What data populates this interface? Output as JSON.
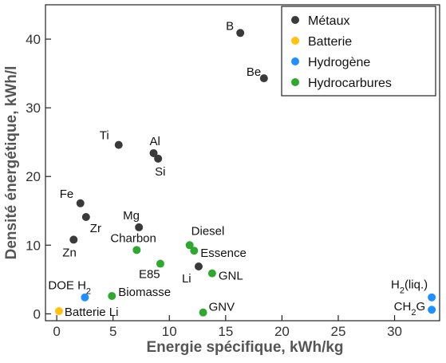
{
  "chart_data": {
    "type": "scatter",
    "xlabel": "Energie spécifique, kWh/kg",
    "ylabel": "Densité énergétique, kWh/l",
    "xlim": [
      -1,
      34
    ],
    "ylim": [
      -1,
      45
    ],
    "xticks": [
      0,
      5,
      10,
      15,
      20,
      25,
      30
    ],
    "yticks": [
      0,
      10,
      20,
      30,
      40
    ],
    "grid": false,
    "legend_position": "top-right",
    "series": [
      {
        "name": "Métaux",
        "color": "#3a3a3a",
        "points": [
          {
            "label": "B",
            "x": 16.3,
            "y": 40.9
          },
          {
            "label": "Be",
            "x": 18.4,
            "y": 34.3
          },
          {
            "label": "Ti",
            "x": 5.5,
            "y": 24.6
          },
          {
            "label": "Al",
            "x": 8.6,
            "y": 23.4
          },
          {
            "label": "Si",
            "x": 9.0,
            "y": 22.6
          },
          {
            "label": "Fe",
            "x": 2.1,
            "y": 16.1
          },
          {
            "label": "Zr",
            "x": 2.6,
            "y": 14.1
          },
          {
            "label": "Mg",
            "x": 7.3,
            "y": 12.6
          },
          {
            "label": "Zn",
            "x": 1.5,
            "y": 10.8
          },
          {
            "label": "Li",
            "x": 12.6,
            "y": 6.9
          }
        ]
      },
      {
        "name": "Batterie",
        "color": "#ffc20e",
        "points": [
          {
            "label": "Batterie Li",
            "x": 0.2,
            "y": 0.4
          }
        ]
      },
      {
        "name": "Hydrogène",
        "color": "#1e90ff",
        "points": [
          {
            "label": "DOE H2",
            "x": 2.5,
            "y": 2.4
          },
          {
            "label": "H2(liq.)",
            "x": 33.3,
            "y": 2.4
          },
          {
            "label": "CH2G",
            "x": 33.3,
            "y": 0.6
          }
        ]
      },
      {
        "name": "Hydrocarbures",
        "color": "#2ea82e",
        "points": [
          {
            "label": "Diesel",
            "x": 11.8,
            "y": 10.0
          },
          {
            "label": "Essence",
            "x": 12.2,
            "y": 9.2
          },
          {
            "label": "Charbon",
            "x": 7.1,
            "y": 9.3
          },
          {
            "label": "E85",
            "x": 9.2,
            "y": 7.3
          },
          {
            "label": "GNL",
            "x": 13.8,
            "y": 5.9
          },
          {
            "label": "Biomasse",
            "x": 4.9,
            "y": 2.6
          },
          {
            "label": "GNV",
            "x": 13.0,
            "y": 0.2
          }
        ]
      }
    ]
  }
}
